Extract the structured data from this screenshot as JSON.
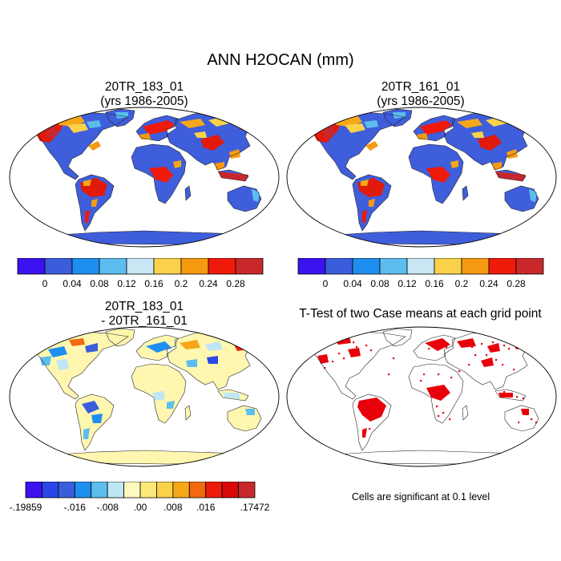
{
  "main_title": "ANN H2OCAN (mm)",
  "panels": [
    {
      "id": "case1",
      "title_line1": "20TR_183_01",
      "title_line2": "(yrs 1986-2005)"
    },
    {
      "id": "case2",
      "title_line1": "20TR_161_01",
      "title_line2": "(yrs 1986-2005)"
    },
    {
      "id": "diff",
      "title_line1": "20TR_183_01",
      "title_line2": "- 20TR_161_01"
    },
    {
      "id": "ttest",
      "title_line1": "T-Test of two Case means at each grid point"
    }
  ],
  "colorbar_main": {
    "colors": [
      "#3c12f0",
      "#3a5ddc",
      "#1e8ff0",
      "#5cbdee",
      "#c8e6f4",
      "#fad24a",
      "#f69a12",
      "#f01a0a",
      "#c8282c"
    ],
    "labels": [
      "0",
      "0.04",
      "0.08",
      "0.12",
      "0.16",
      "0.2",
      "0.24",
      "0.28"
    ]
  },
  "colorbar_diff": {
    "colors": [
      "#3c12f0",
      "#2a46e6",
      "#3a5ddc",
      "#1e8ff0",
      "#5cbdee",
      "#bfe6f4",
      "#fff9c0",
      "#fce878",
      "#fad24a",
      "#f6a818",
      "#f26a10",
      "#ec1c0a",
      "#d80808",
      "#c8282c"
    ],
    "labels": [
      "-.19859",
      "-.016",
      "-.008",
      ".00",
      ".008",
      ".016",
      ".17472"
    ]
  },
  "significance_note": "Cells are significant at 0.1 level",
  "map_colors": {
    "ocean": "#ffffff",
    "case_land": "#3f5edc",
    "diff_land": "#fff6b0",
    "sig": "#e8000b",
    "coast": "#222222"
  }
}
